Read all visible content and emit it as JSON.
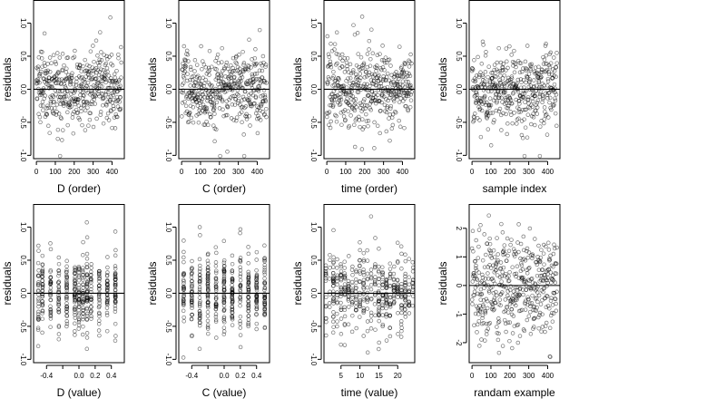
{
  "colors": {
    "background": "#ffffff",
    "points": "rgba(0,0,0,0.55)",
    "line": "#000000"
  },
  "chart_data": [
    {
      "type": "scatter",
      "title": "",
      "xlabel": "D (order)",
      "ylabel": "residuals",
      "xlim": [
        -15,
        465
      ],
      "ylim": [
        -1.05,
        1.35
      ],
      "xticks": [
        0,
        100,
        200,
        300,
        400
      ],
      "xtick_labels": [
        "0",
        "100",
        "200",
        "300",
        "400"
      ],
      "yticks": [
        -1,
        -0.5,
        0,
        0.5,
        1
      ],
      "ytick_labels": [
        "-1.0",
        "-0.5",
        "0.0",
        "0.5",
        "1.0"
      ],
      "hline": 0,
      "n_points": 450,
      "pattern": "index"
    },
    {
      "type": "scatter",
      "title": "",
      "xlabel": "C (order)",
      "ylabel": "residuals",
      "xlim": [
        -15,
        465
      ],
      "ylim": [
        -1.05,
        1.35
      ],
      "xticks": [
        0,
        100,
        200,
        300,
        400
      ],
      "xtick_labels": [
        "0",
        "100",
        "200",
        "300",
        "400"
      ],
      "yticks": [
        -1,
        -0.5,
        0,
        0.5,
        1
      ],
      "ytick_labels": [
        "-1.0",
        "-0.5",
        "0.0",
        "0.5",
        "1.0"
      ],
      "hline": 0,
      "n_points": 450,
      "pattern": "index"
    },
    {
      "type": "scatter",
      "title": "",
      "xlabel": "time (order)",
      "ylabel": "residuals",
      "xlim": [
        -15,
        465
      ],
      "ylim": [
        -1.05,
        1.35
      ],
      "xticks": [
        0,
        100,
        200,
        300,
        400
      ],
      "xtick_labels": [
        "0",
        "100",
        "200",
        "300",
        "400"
      ],
      "yticks": [
        -1,
        -0.5,
        0,
        0.5,
        1
      ],
      "ytick_labels": [
        "-1.0",
        "-0.5",
        "0.0",
        "0.5",
        "1.0"
      ],
      "hline": 0,
      "n_points": 450,
      "pattern": "index"
    },
    {
      "type": "scatter",
      "title": "",
      "xlabel": "sample index",
      "ylabel": "residuals",
      "xlim": [
        -15,
        465
      ],
      "ylim": [
        -1.05,
        1.35
      ],
      "xticks": [
        0,
        100,
        200,
        300,
        400
      ],
      "xtick_labels": [
        "0",
        "100",
        "200",
        "300",
        "400"
      ],
      "yticks": [
        -1,
        -0.5,
        0,
        0.5,
        1
      ],
      "ytick_labels": [
        "-1.0",
        "-0.5",
        "0.0",
        "0.5",
        "1.0"
      ],
      "hline": 0,
      "n_points": 450,
      "pattern": "index"
    },
    {
      "type": "scatter",
      "title": "",
      "xlabel": "D (value)",
      "ylabel": "residuals",
      "xlim": [
        -0.56,
        0.56
      ],
      "ylim": [
        -1.05,
        1.35
      ],
      "xticks": [
        -0.4,
        -0.2,
        0,
        0.2,
        0.4
      ],
      "xtick_labels": [
        "-0.4",
        "",
        "0.0",
        "0.2",
        "0.4"
      ],
      "yticks": [
        -1,
        -0.5,
        0,
        0.5,
        1
      ],
      "ytick_labels": [
        "-1.0",
        "-0.5",
        "0.0",
        "0.5",
        "1.0"
      ],
      "hline": 0,
      "n_points": 450,
      "pattern": "discrete",
      "x_levels": [
        -0.5,
        -0.45,
        -0.35,
        -0.25,
        -0.15,
        -0.05,
        0.0,
        0.05,
        0.1,
        0.15,
        0.25,
        0.35,
        0.45
      ]
    },
    {
      "type": "scatter",
      "title": "",
      "xlabel": "C (value)",
      "ylabel": "residuals",
      "xlim": [
        -0.56,
        0.56
      ],
      "ylim": [
        -1.05,
        1.35
      ],
      "xticks": [
        -0.4,
        -0.2,
        0,
        0.2,
        0.4
      ],
      "xtick_labels": [
        "-0.4",
        "",
        "0.0",
        "0.2",
        "0.4"
      ],
      "yticks": [
        -1,
        -0.5,
        0,
        0.5,
        1
      ],
      "ytick_labels": [
        "-1.0",
        "-0.5",
        "0.0",
        "0.5",
        "1.0"
      ],
      "hline": 0,
      "n_points": 450,
      "pattern": "discrete",
      "x_levels": [
        -0.5,
        -0.4,
        -0.3,
        -0.2,
        -0.1,
        0.0,
        0.1,
        0.2,
        0.3,
        0.4,
        0.5
      ]
    },
    {
      "type": "scatter",
      "title": "",
      "xlabel": "time (value)",
      "ylabel": "residuals",
      "xlim": [
        0.5,
        24.5
      ],
      "ylim": [
        -1.05,
        1.35
      ],
      "xticks": [
        5,
        10,
        15,
        20
      ],
      "xtick_labels": [
        "5",
        "10",
        "15",
        "20"
      ],
      "yticks": [
        -1,
        -0.5,
        0,
        0.5,
        1
      ],
      "ytick_labels": [
        "-1.0",
        "-0.5",
        "0.0",
        "0.5",
        "1.0"
      ],
      "hline": 0,
      "n_points": 450,
      "pattern": "discrete",
      "x_levels": [
        1,
        2,
        3,
        4,
        5,
        6,
        7,
        8,
        9,
        10,
        11,
        12,
        13,
        14,
        15,
        16,
        17,
        18,
        19,
        20,
        21,
        22,
        23,
        24
      ]
    },
    {
      "type": "scatter",
      "title": "",
      "xlabel": "randam example",
      "ylabel": "residuals",
      "xlim": [
        -15,
        465
      ],
      "ylim": [
        -2.7,
        2.85
      ],
      "xticks": [
        0,
        100,
        200,
        300,
        400
      ],
      "xtick_labels": [
        "0",
        "100",
        "200",
        "300",
        "400"
      ],
      "yticks": [
        -2,
        -1,
        0,
        1,
        2
      ],
      "ytick_labels": [
        "-2",
        "-1",
        "0",
        "1",
        "2"
      ],
      "hline": 0,
      "n_points": 450,
      "pattern": "random"
    }
  ]
}
